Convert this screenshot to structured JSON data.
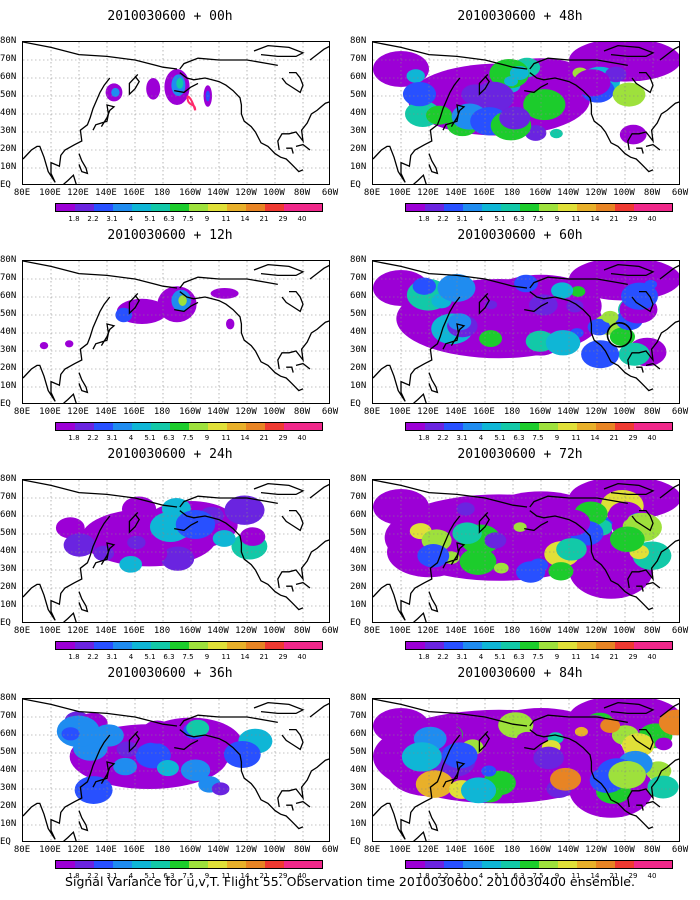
{
  "panels": [
    {
      "title": "2010030600 + 00h",
      "level": 0,
      "loop": "pink"
    },
    {
      "title": "2010030600 + 12h",
      "level": 1
    },
    {
      "title": "2010030600 + 24h",
      "level": 2
    },
    {
      "title": "2010030600 + 36h",
      "level": 3
    },
    {
      "title": "2010030600 + 48h",
      "level": 4
    },
    {
      "title": "2010030600 + 60h",
      "level": 5,
      "loop": "black"
    },
    {
      "title": "2010030600 + 72h",
      "level": 6
    },
    {
      "title": "2010030600 + 84h",
      "level": 7
    }
  ],
  "lat_labels": [
    "80N",
    "70N",
    "60N",
    "50N",
    "40N",
    "30N",
    "20N",
    "10N",
    "EQ"
  ],
  "lon_labels": [
    "80E",
    "100E",
    "120E",
    "140E",
    "160E",
    "180",
    "160W",
    "140W",
    "120W",
    "100W",
    "80W",
    "60W"
  ],
  "colorbar": {
    "levels": [
      "1.8",
      "2.2",
      "3.1",
      "4",
      "5.1",
      "6.3",
      "7.5",
      "9",
      "11",
      "14",
      "21",
      "29",
      "40"
    ],
    "colors": [
      "#9c00d6",
      "#6a24e0",
      "#2850ff",
      "#1f8cf0",
      "#0fb6d6",
      "#12c9a8",
      "#1ccc2c",
      "#9ee13c",
      "#e0e038",
      "#e8b02a",
      "#e88424",
      "#ef3a32",
      "#f0288a"
    ]
  },
  "caption": "Signal Variance for u,v,T. Flight 55. Observation time 2010030600. 2010030400 ensemble."
}
